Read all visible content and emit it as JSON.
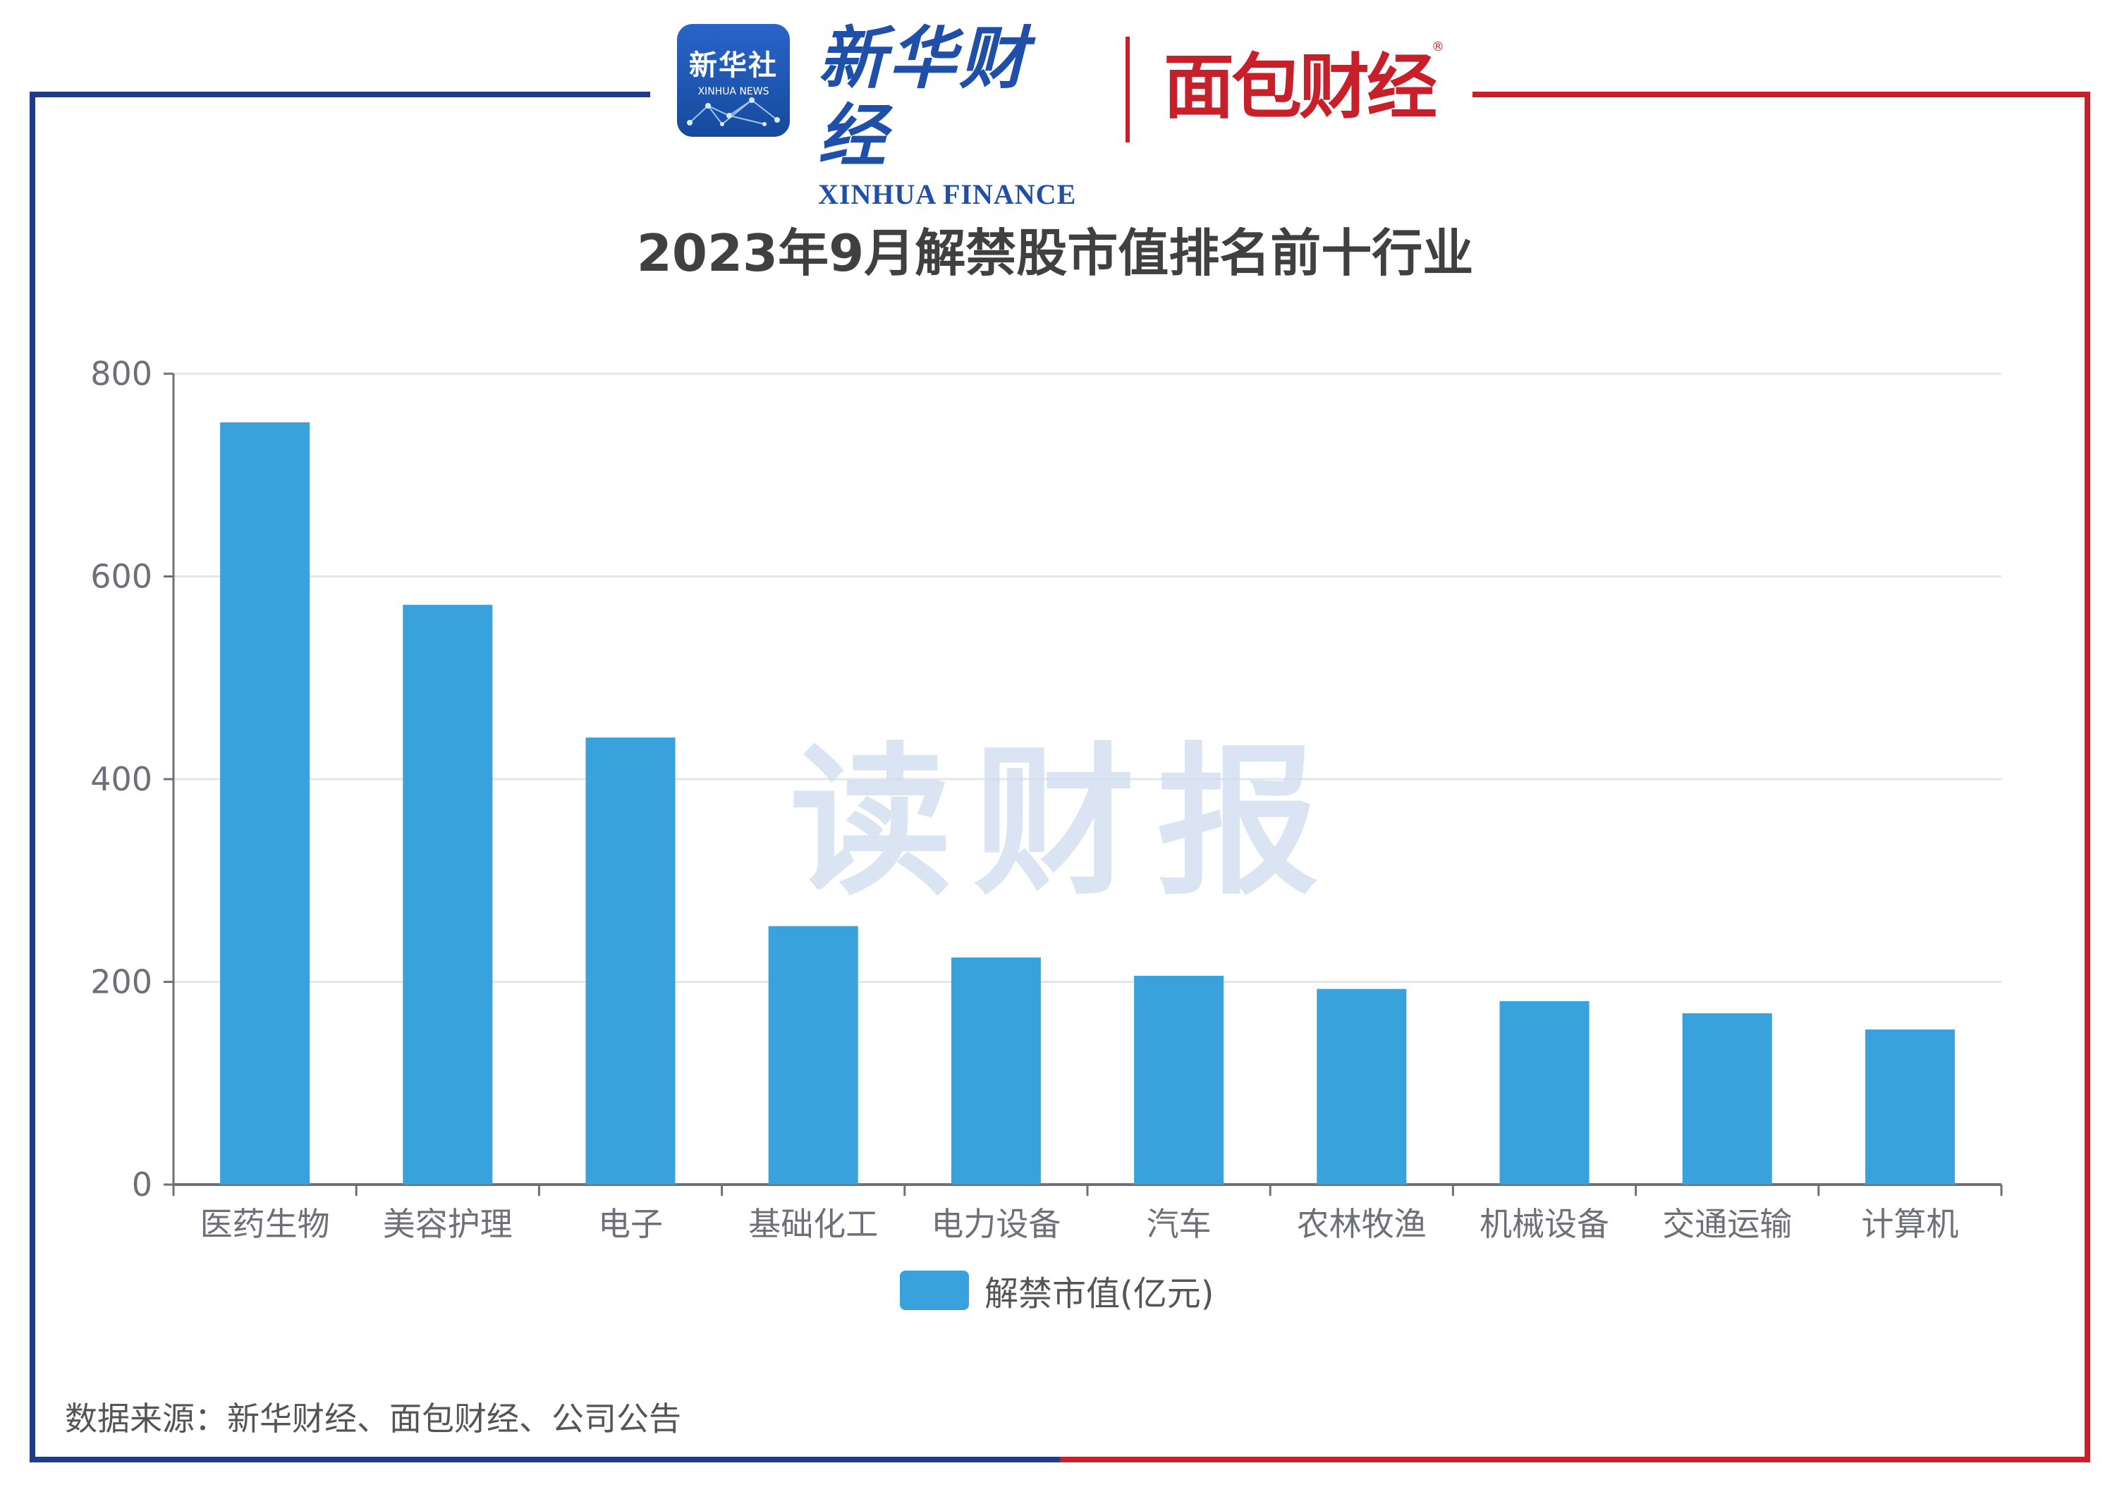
{
  "logos": {
    "xinhua_badge_cn": "新华社",
    "xinhua_badge_en": "XINHUA NEWS",
    "xinhua_finance_cn": "新华财经",
    "xinhua_finance_en": "XINHUA FINANCE",
    "mianbao_cn": "面包财经",
    "mianbao_reg": "®"
  },
  "watermark": "读财报",
  "source": "数据来源：新华财经、面包财经、公司公告",
  "colors": {
    "bar": "#39a1db",
    "frame_left": "#1f3c88",
    "frame_right": "#c8202a"
  },
  "chart_data": {
    "type": "bar",
    "title": "2023年9月解禁股市值排名前十行业",
    "categories": [
      "医药生物",
      "美容护理",
      "电子",
      "基础化工",
      "电力设备",
      "汽车",
      "农林牧渔",
      "机械设备",
      "交通运输",
      "计算机"
    ],
    "series": [
      {
        "name": "解禁市值(亿元)",
        "values": [
          752,
          572,
          441,
          255,
          224,
          206,
          193,
          181,
          169,
          153
        ]
      }
    ],
    "yticks": [
      0,
      200,
      400,
      600,
      800
    ],
    "ylim": [
      0,
      800
    ],
    "grid": true,
    "legend_position": "bottom"
  }
}
